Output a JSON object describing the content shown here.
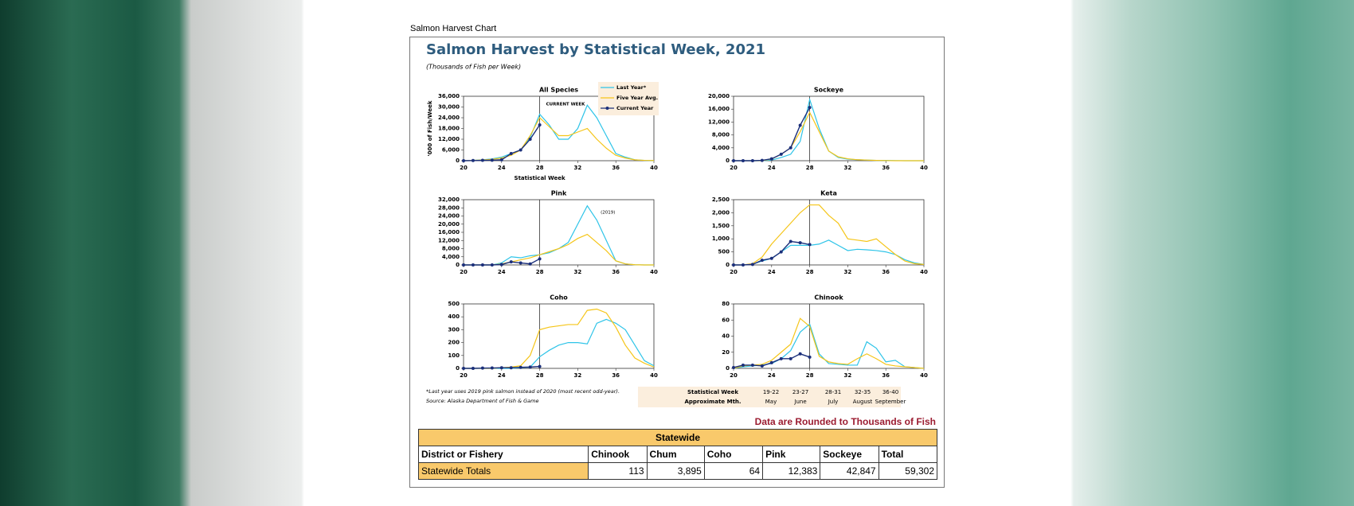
{
  "page_title": "Salmon Harvest Chart",
  "figure": {
    "title": "Salmon Harvest by Statistical Week, 2021",
    "subtitle": "(Thousands of Fish per Week)",
    "footnote": "*Last year uses 2019 pink salmon instead of 2020 (most recent odd-year).",
    "source": "Source: Alaska Department of Fish & Game",
    "week_table": {
      "rows": [
        [
          "Statistical Week",
          "19-22",
          "23-27",
          "28-31",
          "32-35",
          "36-40"
        ],
        [
          "Approximate Mth.",
          "May",
          "June",
          "July",
          "August",
          "September"
        ]
      ]
    }
  },
  "chart_data": [
    {
      "type": "line",
      "title": "All Species",
      "x_label": "Statistical Week",
      "y_label": "'000 of Fish/Week",
      "annotation": "CURRENT WEEK",
      "legend": "top-right",
      "vline": 28,
      "x": [
        20,
        21,
        22,
        23,
        24,
        25,
        26,
        27,
        28,
        29,
        30,
        31,
        32,
        33,
        34,
        35,
        36,
        37,
        38,
        39,
        40
      ],
      "xlim": [
        20,
        40
      ],
      "xticks": [
        20,
        24,
        28,
        32,
        36,
        40
      ],
      "ylim": [
        0,
        36000
      ],
      "yticks": [
        0,
        {
          "value": 6000,
          "label": "6,000"
        },
        {
          "value": 12000,
          "label": "12,000"
        },
        {
          "value": 18000,
          "label": "18,000"
        },
        {
          "value": 24000,
          "label": "24,000"
        },
        {
          "value": 30000,
          "label": "30,000"
        },
        {
          "value": 36000,
          "label": "36,000"
        }
      ],
      "series": [
        {
          "name": "Last Year*",
          "color": "#2ec4e8",
          "values": [
            0,
            200,
            500,
            1000,
            2000,
            4000,
            6000,
            13000,
            26000,
            20000,
            12000,
            12000,
            18000,
            31000,
            24000,
            14000,
            4000,
            2000,
            500,
            200,
            100
          ]
        },
        {
          "name": "Five Year Avg.",
          "color": "#f5c518",
          "values": [
            0,
            200,
            400,
            800,
            1500,
            3000,
            6000,
            14000,
            24000,
            19000,
            14000,
            14000,
            16000,
            18000,
            12000,
            7000,
            3000,
            1500,
            500,
            200,
            100
          ]
        },
        {
          "name": "Current Year",
          "color": "#1b2f7a",
          "values": [
            0,
            100,
            200,
            300,
            500,
            4000,
            6000,
            12000,
            20000,
            null,
            null,
            null,
            null,
            null,
            null,
            null,
            null,
            null,
            null,
            null,
            null
          ]
        }
      ]
    },
    {
      "type": "line",
      "title": "Sockeye",
      "vline": 28,
      "x": [
        20,
        21,
        22,
        23,
        24,
        25,
        26,
        27,
        28,
        29,
        30,
        31,
        32,
        33,
        34,
        35,
        36,
        37,
        38,
        39,
        40
      ],
      "xlim": [
        20,
        40
      ],
      "xticks": [
        20,
        24,
        28,
        32,
        36,
        40
      ],
      "ylim": [
        0,
        20000
      ],
      "yticks": [
        0,
        {
          "value": 4000,
          "label": "4,000"
        },
        {
          "value": 8000,
          "label": "8,000"
        },
        {
          "value": 12000,
          "label": "12,000"
        },
        {
          "value": 16000,
          "label": "16,000"
        },
        {
          "value": 20000,
          "label": "20,000"
        }
      ],
      "series": [
        {
          "color": "#2ec4e8",
          "values": [
            0,
            0,
            0,
            0,
            200,
            1000,
            2000,
            6000,
            19000,
            10000,
            3000,
            1000,
            500,
            300,
            200,
            100,
            100,
            50,
            0,
            0,
            0
          ]
        },
        {
          "color": "#f5c518",
          "values": [
            0,
            0,
            0,
            0,
            500,
            2000,
            4000,
            9000,
            15000,
            9000,
            3000,
            1200,
            600,
            300,
            200,
            100,
            50,
            0,
            0,
            0,
            0
          ]
        },
        {
          "color": "#1b2f7a",
          "values": [
            0,
            0,
            0,
            100,
            600,
            2000,
            4000,
            11000,
            16500,
            null,
            null,
            null,
            null,
            null,
            null,
            null,
            null,
            null,
            null,
            null,
            null
          ]
        }
      ]
    },
    {
      "type": "line",
      "title": "Pink",
      "annotation": "(2019)",
      "vline": 28,
      "x": [
        20,
        21,
        22,
        23,
        24,
        25,
        26,
        27,
        28,
        29,
        30,
        31,
        32,
        33,
        34,
        35,
        36,
        37,
        38,
        39,
        40
      ],
      "xlim": [
        20,
        40
      ],
      "xticks": [
        20,
        24,
        28,
        32,
        36,
        40
      ],
      "ylim": [
        0,
        32000
      ],
      "yticks": [
        0,
        {
          "value": 4000,
          "label": "4,000"
        },
        {
          "value": 8000,
          "label": "8,000"
        },
        {
          "value": 12000,
          "label": "12,000"
        },
        {
          "value": 16000,
          "label": "16,000"
        },
        {
          "value": 20000,
          "label": "20,000"
        },
        {
          "value": 24000,
          "label": "24,000"
        },
        {
          "value": 28000,
          "label": "28,000"
        },
        {
          "value": 32000,
          "label": "32,000"
        }
      ],
      "series": [
        {
          "color": "#2ec4e8",
          "values": [
            0,
            0,
            0,
            0,
            1000,
            4000,
            3500,
            4500,
            5000,
            6000,
            8000,
            11000,
            20000,
            29000,
            22000,
            12000,
            2000,
            500,
            100,
            0,
            0
          ]
        },
        {
          "color": "#f5c518",
          "values": [
            0,
            0,
            0,
            0,
            500,
            1500,
            2500,
            3500,
            5000,
            6500,
            8000,
            10000,
            13000,
            15000,
            11000,
            7000,
            2000,
            500,
            100,
            0,
            0
          ]
        },
        {
          "color": "#1b2f7a",
          "values": [
            0,
            0,
            0,
            0,
            200,
            1500,
            1000,
            500,
            3000,
            null,
            null,
            null,
            null,
            null,
            null,
            null,
            null,
            null,
            null,
            null,
            null
          ]
        }
      ]
    },
    {
      "type": "line",
      "title": "Keta",
      "vline": 28,
      "x": [
        20,
        21,
        22,
        23,
        24,
        25,
        26,
        27,
        28,
        29,
        30,
        31,
        32,
        33,
        34,
        35,
        36,
        37,
        38,
        39,
        40
      ],
      "xlim": [
        20,
        40
      ],
      "xticks": [
        20,
        24,
        28,
        32,
        36,
        40
      ],
      "ylim": [
        0,
        2500
      ],
      "yticks": [
        0,
        500,
        {
          "value": 1000,
          "label": "1,000"
        },
        {
          "value": 1500,
          "label": "1,500"
        },
        {
          "value": 2000,
          "label": "2,000"
        },
        {
          "value": 2500,
          "label": "2,500"
        }
      ],
      "series": [
        {
          "color": "#2ec4e8",
          "values": [
            0,
            0,
            30,
            150,
            250,
            500,
            750,
            750,
            750,
            800,
            950,
            750,
            550,
            600,
            580,
            550,
            500,
            400,
            200,
            80,
            20
          ]
        },
        {
          "color": "#f5c518",
          "values": [
            0,
            0,
            50,
            300,
            800,
            1200,
            1600,
            2000,
            2300,
            2300,
            1900,
            1600,
            1000,
            950,
            900,
            1000,
            700,
            400,
            150,
            50,
            20
          ]
        },
        {
          "color": "#1b2f7a",
          "values": [
            0,
            0,
            20,
            180,
            250,
            500,
            900,
            850,
            780,
            null,
            null,
            null,
            null,
            null,
            null,
            null,
            null,
            null,
            null,
            null,
            null
          ]
        }
      ]
    },
    {
      "type": "line",
      "title": "Coho",
      "vline": 28,
      "x": [
        20,
        21,
        22,
        23,
        24,
        25,
        26,
        27,
        28,
        29,
        30,
        31,
        32,
        33,
        34,
        35,
        36,
        37,
        38,
        39,
        40
      ],
      "xlim": [
        20,
        40
      ],
      "xticks": [
        20,
        24,
        28,
        32,
        36,
        40
      ],
      "ylim": [
        0,
        500
      ],
      "yticks": [
        0,
        100,
        200,
        300,
        400,
        500
      ],
      "series": [
        {
          "color": "#2ec4e8",
          "values": [
            0,
            0,
            0,
            0,
            0,
            0,
            5,
            10,
            90,
            140,
            180,
            200,
            200,
            190,
            350,
            380,
            350,
            300,
            180,
            60,
            20
          ]
        },
        {
          "color": "#f5c518",
          "values": [
            0,
            0,
            0,
            0,
            5,
            10,
            20,
            100,
            300,
            320,
            330,
            340,
            340,
            450,
            460,
            430,
            320,
            180,
            80,
            40,
            10
          ]
        },
        {
          "color": "#1b2f7a",
          "values": [
            0,
            0,
            2,
            3,
            5,
            5,
            8,
            10,
            15,
            null,
            null,
            null,
            null,
            null,
            null,
            null,
            null,
            null,
            null,
            null,
            null
          ]
        }
      ]
    },
    {
      "type": "line",
      "title": "Chinook",
      "vline": 28,
      "x": [
        20,
        21,
        22,
        23,
        24,
        25,
        26,
        27,
        28,
        29,
        30,
        31,
        32,
        33,
        34,
        35,
        36,
        37,
        38,
        39,
        40
      ],
      "xlim": [
        20,
        40
      ],
      "xticks": [
        20,
        24,
        28,
        32,
        36,
        40
      ],
      "ylim": [
        0,
        80
      ],
      "yticks": [
        0,
        20,
        40,
        60,
        80
      ],
      "series": [
        {
          "color": "#2ec4e8",
          "values": [
            0,
            2,
            3,
            4,
            6,
            12,
            22,
            45,
            55,
            18,
            6,
            5,
            4,
            4,
            33,
            25,
            8,
            10,
            2,
            1,
            0
          ]
        },
        {
          "color": "#f5c518",
          "values": [
            0,
            3,
            4,
            5,
            10,
            20,
            30,
            62,
            52,
            15,
            8,
            6,
            5,
            12,
            18,
            12,
            5,
            3,
            2,
            1,
            0
          ]
        },
        {
          "color": "#1b2f7a",
          "values": [
            1,
            4,
            4,
            3,
            7,
            12,
            12,
            18,
            14,
            null,
            null,
            null,
            null,
            null,
            null,
            null,
            null,
            null,
            null,
            null,
            null
          ]
        }
      ]
    }
  ],
  "note": "Data are Rounded to Thousands of Fish",
  "table": {
    "title": "Statewide",
    "header": [
      "District or Fishery",
      "Chinook",
      "Chum",
      "Coho",
      "Pink",
      "Sockeye",
      "Total"
    ],
    "rows": [
      [
        "Statewide Totals",
        "113",
        "3,895",
        "64",
        "12,383",
        "42,847",
        "59,302"
      ]
    ]
  }
}
